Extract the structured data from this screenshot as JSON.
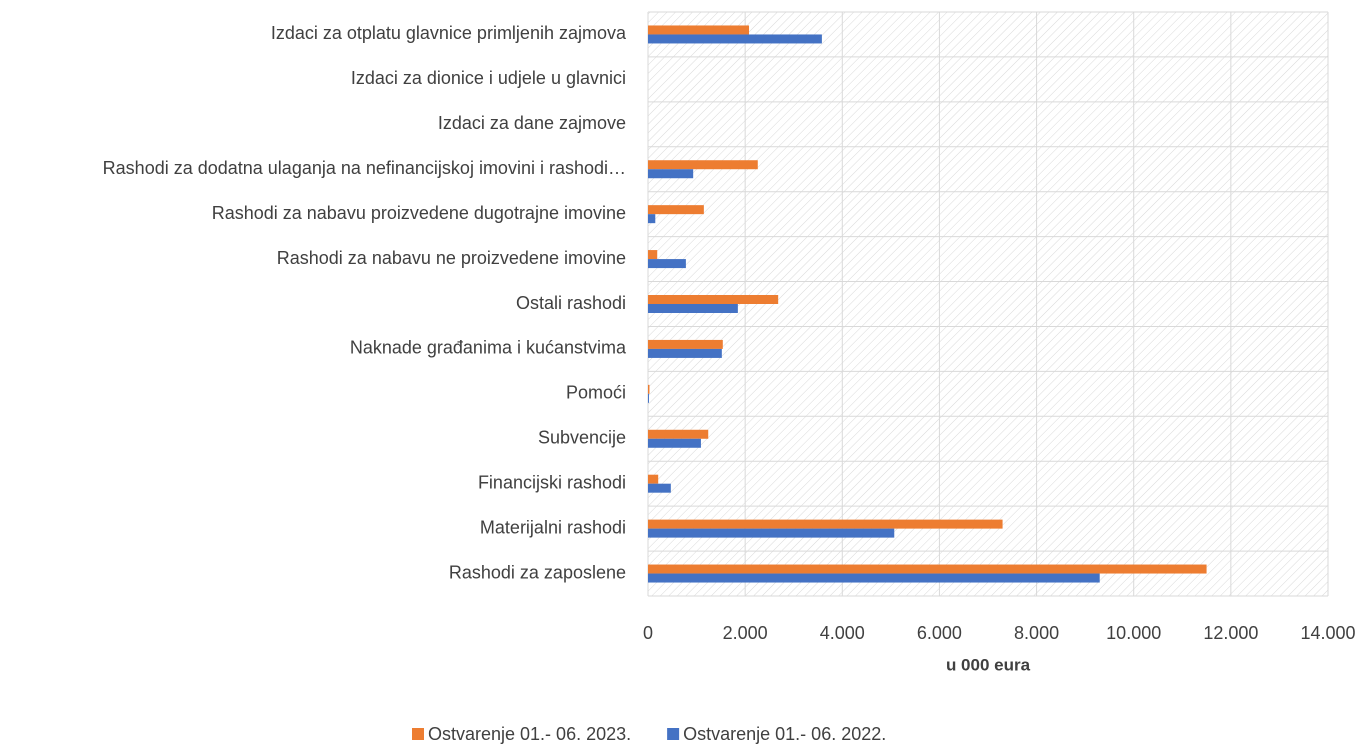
{
  "chart_data": {
    "type": "hbar",
    "categories": [
      "Izdaci za otplatu glavnice primljenih zajmova",
      "Izdaci za dionice i udjele u glavnici",
      "Izdaci za dane zajmove",
      "Rashodi za dodatna ulaganja na nefinancijskoj imovini i rashodi…",
      "Rashodi za nabavu proizvedene dugotrajne imovine",
      "Rashodi za nabavu ne proizvedene imovine",
      "Ostali rashodi",
      "Naknade građanima i kućanstvima",
      "Pomoći",
      "Subvencije",
      "Financijski rashodi",
      "Materijalni rashodi",
      "Rashodi za zaposlene"
    ],
    "series": [
      {
        "name": "Ostvarenje 01.- 06. 2023.",
        "color": "#ed7d31",
        "values": [
          2080,
          0,
          0,
          2260,
          1150,
          190,
          2680,
          1540,
          30,
          1240,
          210,
          7300,
          11500
        ]
      },
      {
        "name": "Ostvarenje 01.- 06. 2022.",
        "color": "#4472c4",
        "values": [
          3580,
          0,
          0,
          930,
          150,
          780,
          1850,
          1520,
          20,
          1090,
          470,
          5070,
          9300
        ]
      }
    ],
    "xlabel": "u 000 eura",
    "xlim": [
      0,
      14000
    ],
    "xticks": [
      0,
      {
        "value": 2000,
        "label": "2.000"
      },
      {
        "value": 4000,
        "label": "4.000"
      },
      {
        "value": 6000,
        "label": "6.000"
      },
      {
        "value": 8000,
        "label": "8.000"
      },
      {
        "value": 10000,
        "label": "10.000"
      },
      {
        "value": 12000,
        "label": "12.000"
      },
      {
        "value": 14000,
        "label": "14.000"
      }
    ],
    "grid": true,
    "legend": "bottom"
  }
}
